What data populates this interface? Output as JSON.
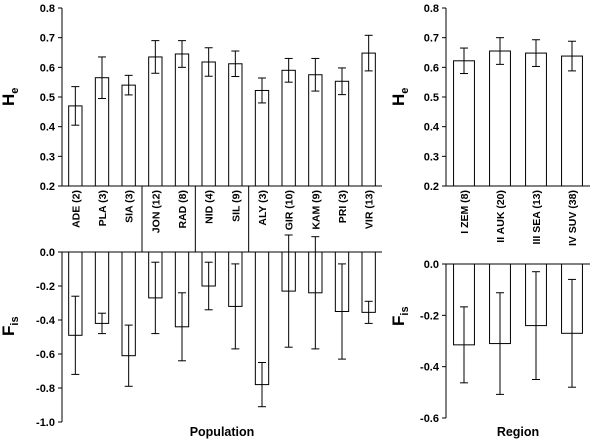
{
  "chart_data": [
    {
      "id": "pop_he",
      "type": "bar",
      "categories": [
        "ADE (2)",
        "PLA (3)",
        "SIA (3)",
        "JON (12)",
        "RAD (8)",
        "NID (4)",
        "SIL (9)",
        "ALY (3)",
        "GIR (10)",
        "KAM (9)",
        "PRI (3)",
        "VIR (13)"
      ],
      "values": [
        0.47,
        0.565,
        0.54,
        0.635,
        0.645,
        0.618,
        0.612,
        0.522,
        0.59,
        0.575,
        0.553,
        0.648
      ],
      "errors": [
        0.065,
        0.07,
        0.033,
        0.055,
        0.045,
        0.048,
        0.043,
        0.042,
        0.04,
        0.055,
        0.045,
        0.06
      ],
      "ylabel": "H",
      "ylabel_sub": "e",
      "ylim": [
        0.2,
        0.8
      ],
      "yticks": [
        "0.2",
        "0.3",
        "0.4",
        "0.5",
        "0.6",
        "0.7",
        "0.8"
      ]
    },
    {
      "id": "pop_fis",
      "type": "bar",
      "categories": [
        "ADE (2)",
        "PLA (3)",
        "SIA (3)",
        "JON (12)",
        "RAD (8)",
        "NID (4)",
        "SIL (9)",
        "ALY (3)",
        "GIR (10)",
        "KAM (9)",
        "PRI (3)",
        "VIR (13)"
      ],
      "values": [
        -0.49,
        -0.42,
        -0.61,
        -0.27,
        -0.44,
        -0.2,
        -0.32,
        -0.78,
        -0.23,
        -0.24,
        -0.35,
        -0.355
      ],
      "errors": [
        0.23,
        0.06,
        0.18,
        0.21,
        0.2,
        0.14,
        0.25,
        0.13,
        0.33,
        0.33,
        0.28,
        0.065
      ],
      "xlabel": "Population",
      "ylabel": "F",
      "ylabel_sub": "is",
      "ylim": [
        -1.0,
        0.0
      ],
      "yticks": [
        "0.0",
        "-0.2",
        "-0.4",
        "-0.6",
        "-0.8",
        "-1.0"
      ],
      "group_dividers_after": [
        3,
        5,
        7
      ]
    },
    {
      "id": "reg_he",
      "type": "bar",
      "categories": [
        "I ZEM (8)",
        "II AUK (20)",
        "III SEA (13)",
        "IV SUV (38)"
      ],
      "values": [
        0.622,
        0.655,
        0.648,
        0.638
      ],
      "errors": [
        0.043,
        0.045,
        0.045,
        0.05
      ],
      "ylabel": "H",
      "ylabel_sub": "e",
      "ylim": [
        0.2,
        0.8
      ],
      "yticks": [
        "0.2",
        "0.3",
        "0.4",
        "0.5",
        "0.6",
        "0.7",
        "0.8"
      ]
    },
    {
      "id": "reg_fis",
      "type": "bar",
      "categories": [
        "I ZEM (8)",
        "II AUK (20)",
        "III SEA (13)",
        "IV SUV (38)"
      ],
      "values": [
        -0.315,
        -0.31,
        -0.24,
        -0.27
      ],
      "errors": [
        0.148,
        0.198,
        0.21,
        0.21
      ],
      "xlabel": "Region",
      "ylabel": "F",
      "ylabel_sub": "is",
      "ylim": [
        -0.6,
        0.0
      ],
      "yticks": [
        "0.0",
        "-0.2",
        "-0.4",
        "-0.6"
      ]
    }
  ]
}
